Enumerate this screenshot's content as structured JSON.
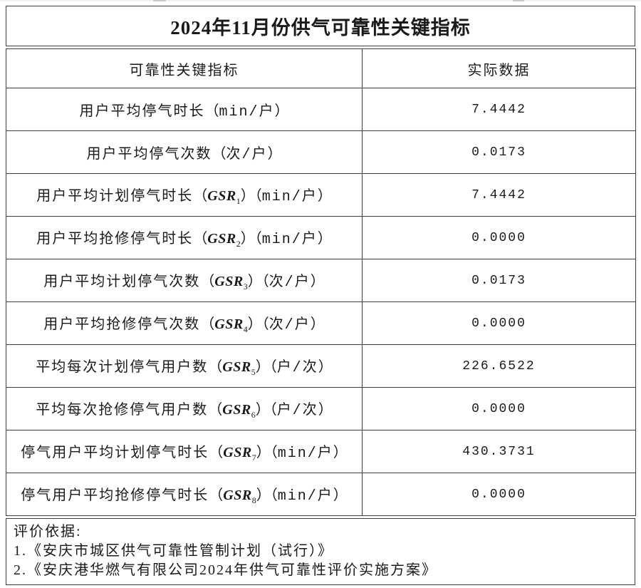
{
  "title": "2024年11月份供气可靠性关键指标",
  "table": {
    "col_headers": [
      "可靠性关键指标",
      "实际数据"
    ],
    "gsr_symbol": "GSR",
    "rows": [
      {
        "label": "用户平均停气时长",
        "gsr": "",
        "unit": "min/户",
        "value": "7.4442"
      },
      {
        "label": "用户平均停气次数",
        "gsr": "",
        "unit": "次/户",
        "value": "0.0173"
      },
      {
        "label": "用户平均计划停气时长",
        "gsr": "1",
        "unit": "min/户",
        "value": "7.4442"
      },
      {
        "label": "用户平均抢修停气时长",
        "gsr": "2",
        "unit": "min/户",
        "value": "0.0000"
      },
      {
        "label": "用户平均计划停气次数",
        "gsr": "3",
        "unit": "次/户",
        "value": "0.0173"
      },
      {
        "label": "用户平均抢修停气次数",
        "gsr": "4",
        "unit": "次/户",
        "value": "0.0000"
      },
      {
        "label": "平均每次计划停气用户数",
        "gsr": "5",
        "unit": "户/次",
        "value": "226.6522"
      },
      {
        "label": "平均每次抢修停气用户数",
        "gsr": "6",
        "unit": "户/次",
        "value": "0.0000"
      },
      {
        "label": "停气用户平均计划停气时长",
        "gsr": "7",
        "unit": "min/户",
        "value": "430.3731"
      },
      {
        "label": "停气用户平均抢修停气时长",
        "gsr": "8",
        "unit": "min/户",
        "value": "0.0000"
      }
    ]
  },
  "footer": {
    "heading": "评价依据:",
    "items": [
      "1.《安庆市城区供气可靠性管制计划（试行）》",
      "2.《安庆港华燃气有限公司2024年供气可靠性评价实施方案》"
    ]
  },
  "punctuation": {
    "open_paren": "（",
    "close_paren": "）"
  },
  "colors": {
    "background": "#ffffff",
    "border": "#3d3d3d",
    "text": "#1a1a1a"
  }
}
